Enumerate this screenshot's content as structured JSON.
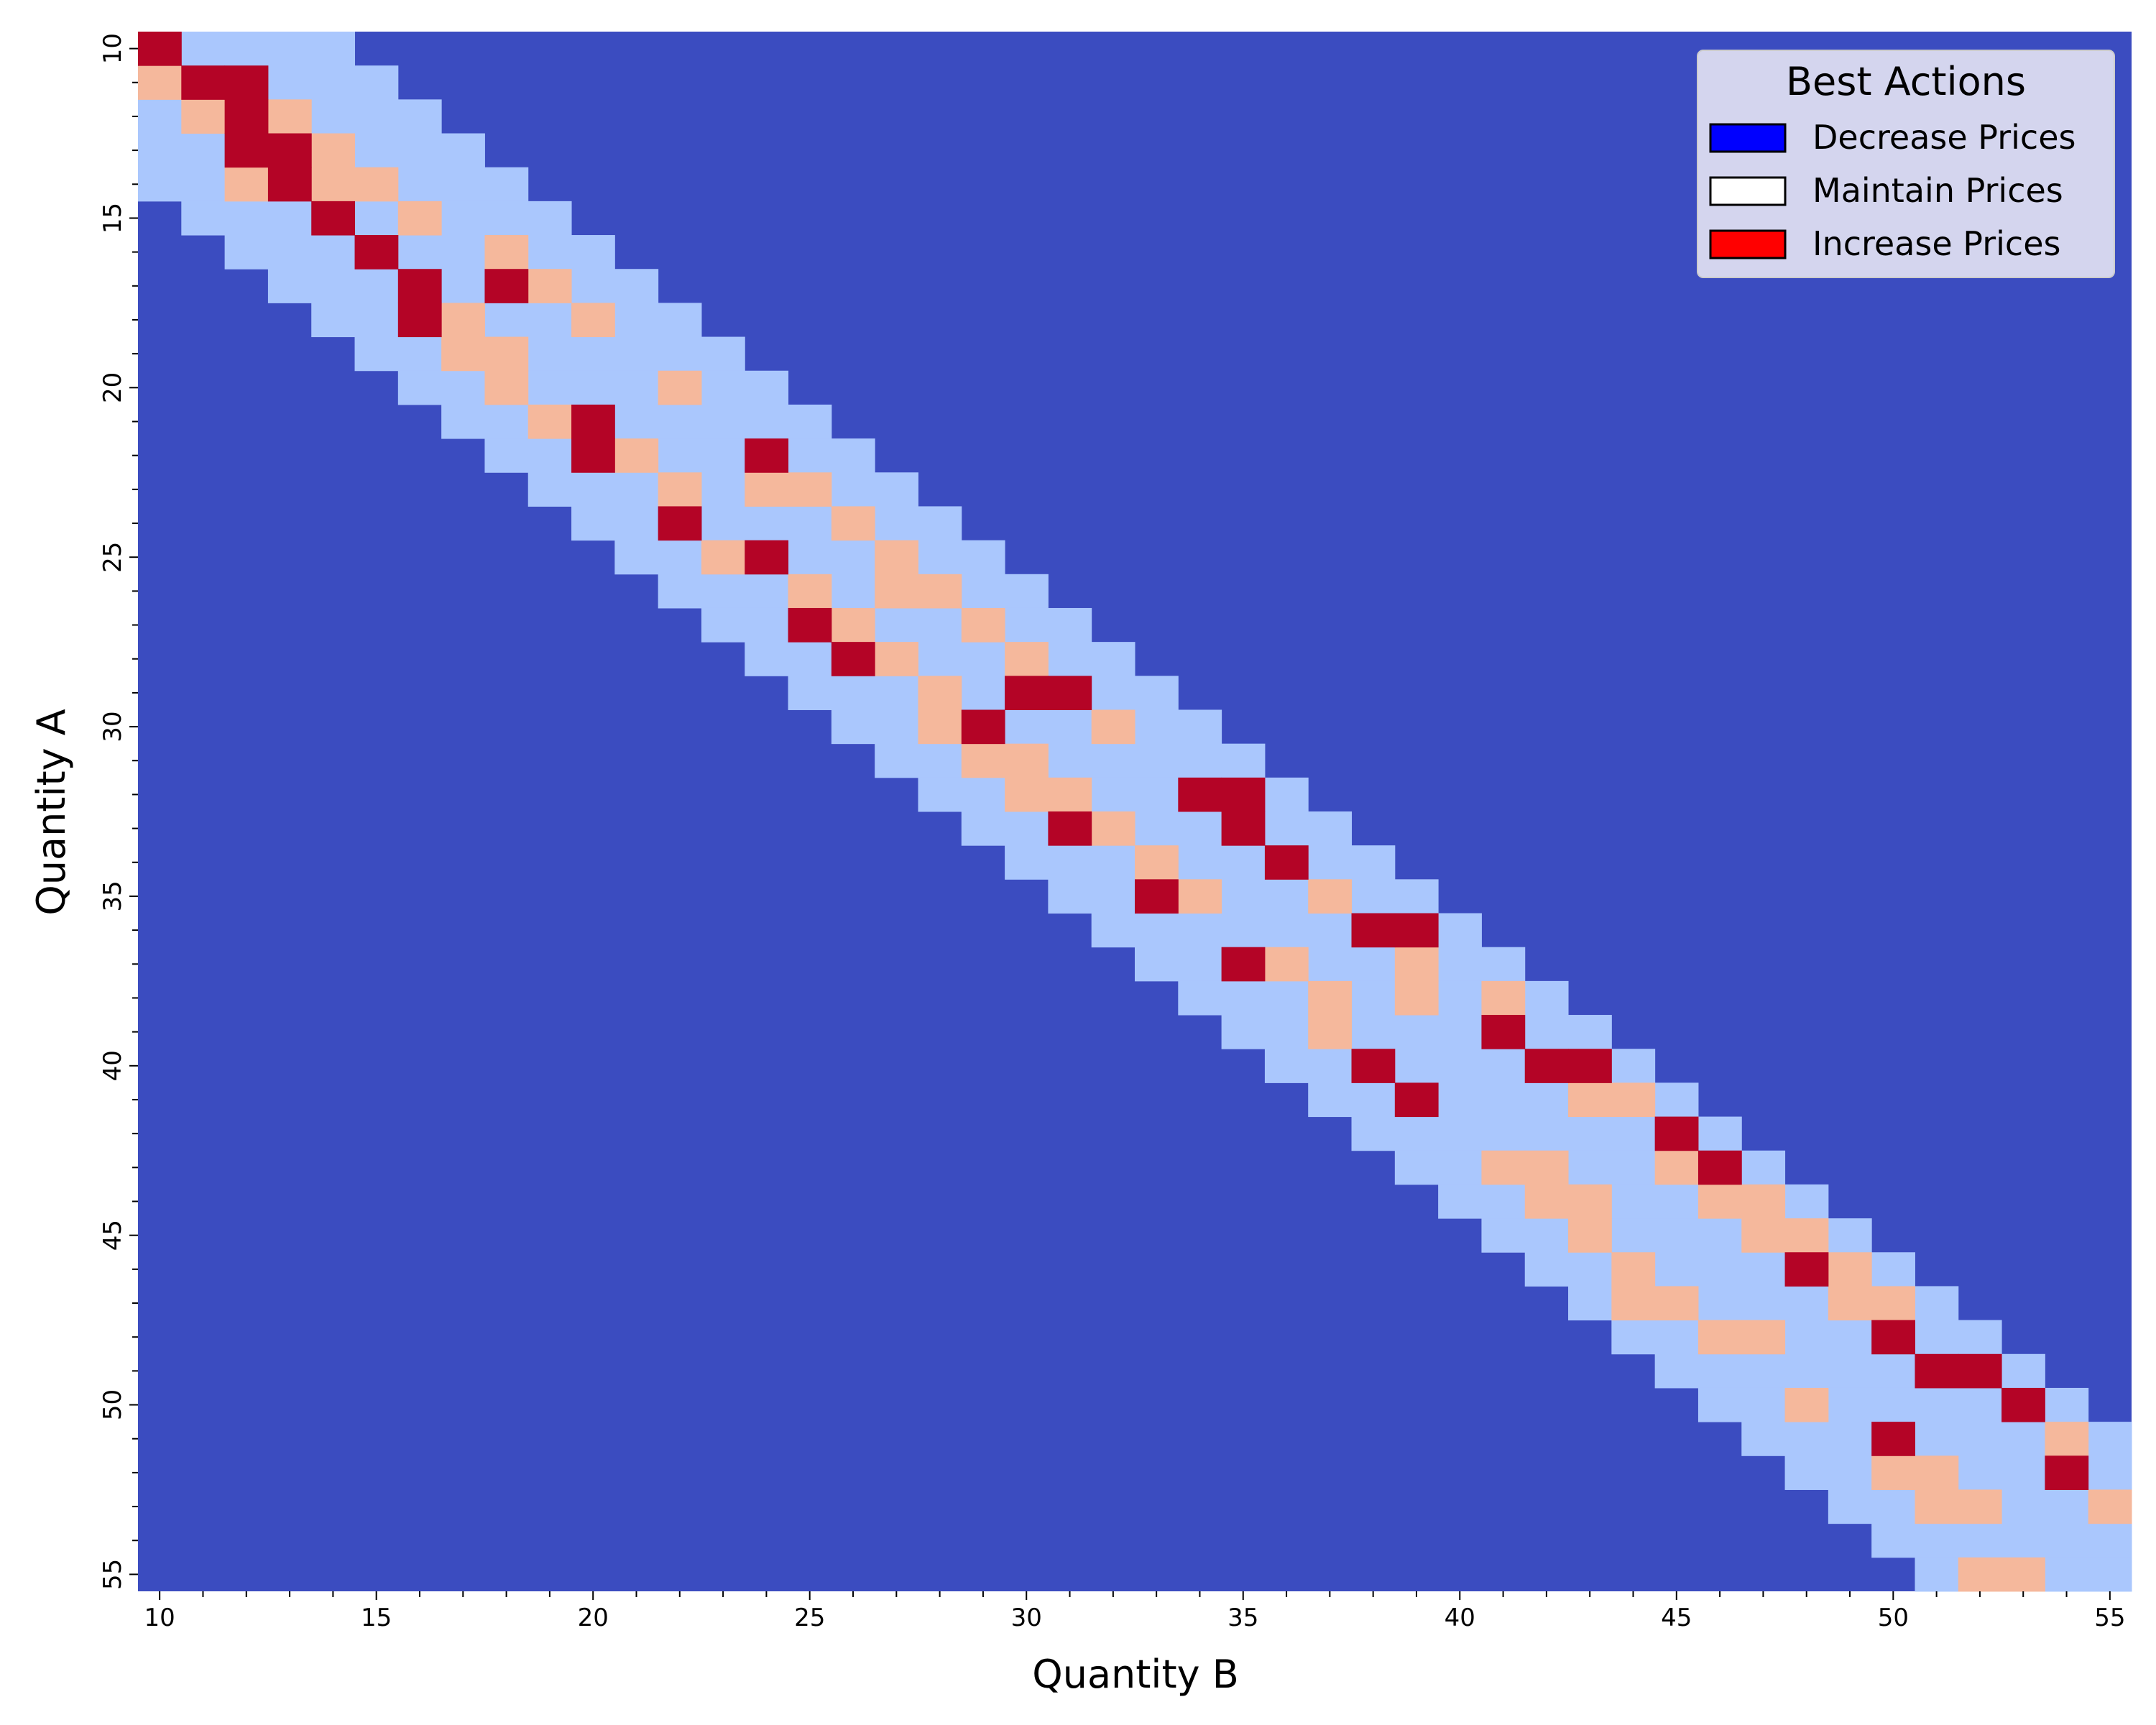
{
  "chart_data": {
    "type": "heatmap",
    "xlabel": "Quantity B",
    "ylabel": "Quantity A",
    "x_start": 10,
    "x_end": 55,
    "y_start": 10,
    "y_end": 55,
    "x_ticks": [
      10,
      15,
      20,
      25,
      30,
      35,
      40,
      45,
      50,
      55
    ],
    "y_ticks": [
      10,
      15,
      20,
      25,
      30,
      35,
      40,
      45,
      50,
      55
    ],
    "colors": {
      "background": "#3b4cc0",
      "light": "#aac7fd",
      "salmon": "#f5b89c",
      "red": "#b40426"
    },
    "band": {
      "description_rows": [
        [
          10,
          10,
          14
        ],
        [
          11,
          10,
          15
        ],
        [
          12,
          10,
          16
        ],
        [
          13,
          10,
          17
        ],
        [
          14,
          10,
          18
        ],
        [
          15,
          11,
          19
        ],
        [
          16,
          12,
          20
        ],
        [
          17,
          13,
          21
        ],
        [
          18,
          14,
          22
        ],
        [
          19,
          15,
          23
        ],
        [
          20,
          16,
          24
        ],
        [
          21,
          17,
          25
        ],
        [
          22,
          18,
          26
        ],
        [
          23,
          19,
          27
        ],
        [
          24,
          20,
          28
        ],
        [
          25,
          21,
          29
        ],
        [
          26,
          22,
          30
        ],
        [
          27,
          23,
          31
        ],
        [
          28,
          24,
          32
        ],
        [
          29,
          25,
          33
        ],
        [
          30,
          26,
          34
        ],
        [
          31,
          27,
          35
        ],
        [
          32,
          28,
          36
        ],
        [
          33,
          29,
          37
        ],
        [
          34,
          30,
          38
        ],
        [
          35,
          31,
          39
        ],
        [
          36,
          32,
          40
        ],
        [
          37,
          33,
          41
        ],
        [
          38,
          34,
          42
        ],
        [
          39,
          35,
          43
        ],
        [
          40,
          36,
          44
        ],
        [
          41,
          37,
          45
        ],
        [
          42,
          38,
          46
        ],
        [
          43,
          39,
          47
        ],
        [
          44,
          40,
          48
        ],
        [
          45,
          41,
          49
        ],
        [
          46,
          42,
          50
        ],
        [
          47,
          43,
          51
        ],
        [
          48,
          44,
          52
        ],
        [
          49,
          45,
          53
        ],
        [
          50,
          46,
          54
        ],
        [
          51,
          47,
          55
        ],
        [
          52,
          48,
          55
        ],
        [
          53,
          49,
          55
        ],
        [
          54,
          50,
          55
        ],
        [
          55,
          51,
          55
        ]
      ]
    },
    "red_cells": [
      [
        10,
        10
      ],
      [
        11,
        11
      ],
      [
        11,
        12
      ],
      [
        12,
        12
      ],
      [
        13,
        12
      ],
      [
        13,
        13
      ],
      [
        14,
        13
      ],
      [
        15,
        14
      ],
      [
        16,
        15
      ],
      [
        17,
        16
      ],
      [
        17,
        18
      ],
      [
        18,
        16
      ],
      [
        21,
        20
      ],
      [
        22,
        20
      ],
      [
        22,
        24
      ],
      [
        24,
        22
      ],
      [
        25,
        24
      ],
      [
        27,
        25
      ],
      [
        28,
        26
      ],
      [
        29,
        30
      ],
      [
        29,
        31
      ],
      [
        30,
        29
      ],
      [
        32,
        34
      ],
      [
        32,
        35
      ],
      [
        33,
        31
      ],
      [
        33,
        35
      ],
      [
        34,
        36
      ],
      [
        35,
        33
      ],
      [
        36,
        38
      ],
      [
        36,
        39
      ],
      [
        37,
        35
      ],
      [
        39,
        41
      ],
      [
        40,
        38
      ],
      [
        40,
        42
      ],
      [
        40,
        43
      ],
      [
        41,
        39
      ],
      [
        42,
        45
      ],
      [
        43,
        46
      ],
      [
        46,
        48
      ],
      [
        48,
        50
      ],
      [
        49,
        51
      ],
      [
        49,
        52
      ],
      [
        50,
        53
      ],
      [
        51,
        50
      ],
      [
        52,
        54
      ]
    ],
    "salmon_cells": [
      [
        11,
        10
      ],
      [
        12,
        11
      ],
      [
        12,
        13
      ],
      [
        13,
        14
      ],
      [
        14,
        12
      ],
      [
        14,
        14
      ],
      [
        14,
        15
      ],
      [
        15,
        16
      ],
      [
        16,
        18
      ],
      [
        17,
        19
      ],
      [
        18,
        17
      ],
      [
        18,
        20
      ],
      [
        19,
        17
      ],
      [
        19,
        18
      ],
      [
        20,
        18
      ],
      [
        20,
        22
      ],
      [
        21,
        19
      ],
      [
        22,
        21
      ],
      [
        23,
        22
      ],
      [
        23,
        24
      ],
      [
        23,
        25
      ],
      [
        24,
        26
      ],
      [
        25,
        23
      ],
      [
        25,
        27
      ],
      [
        26,
        25
      ],
      [
        26,
        27
      ],
      [
        26,
        28
      ],
      [
        27,
        26
      ],
      [
        27,
        29
      ],
      [
        28,
        27
      ],
      [
        28,
        30
      ],
      [
        29,
        28
      ],
      [
        30,
        28
      ],
      [
        30,
        32
      ],
      [
        31,
        29
      ],
      [
        31,
        30
      ],
      [
        32,
        30
      ],
      [
        32,
        31
      ],
      [
        33,
        32
      ],
      [
        34,
        33
      ],
      [
        35,
        34
      ],
      [
        35,
        37
      ],
      [
        37,
        36
      ],
      [
        37,
        39
      ],
      [
        38,
        37
      ],
      [
        38,
        39
      ],
      [
        38,
        41
      ],
      [
        39,
        37
      ],
      [
        41,
        43
      ],
      [
        41,
        44
      ],
      [
        43,
        41
      ],
      [
        43,
        42
      ],
      [
        43,
        45
      ],
      [
        44,
        42
      ],
      [
        44,
        43
      ],
      [
        44,
        46
      ],
      [
        44,
        47
      ],
      [
        45,
        43
      ],
      [
        45,
        47
      ],
      [
        45,
        48
      ],
      [
        46,
        44
      ],
      [
        46,
        49
      ],
      [
        47,
        44
      ],
      [
        47,
        45
      ],
      [
        47,
        49
      ],
      [
        47,
        50
      ],
      [
        48,
        46
      ],
      [
        48,
        47
      ],
      [
        50,
        48
      ],
      [
        51,
        54
      ],
      [
        52,
        50
      ],
      [
        52,
        51
      ],
      [
        53,
        51
      ],
      [
        53,
        52
      ],
      [
        53,
        55
      ],
      [
        55,
        52
      ],
      [
        55,
        53
      ]
    ]
  },
  "legend": {
    "title": "Best Actions",
    "items": [
      {
        "label": "Decrease Prices",
        "color": "#0000ff"
      },
      {
        "label": "Maintain Prices",
        "color": "#ffffff"
      },
      {
        "label": "Increase Prices",
        "color": "#ff0000"
      }
    ]
  }
}
